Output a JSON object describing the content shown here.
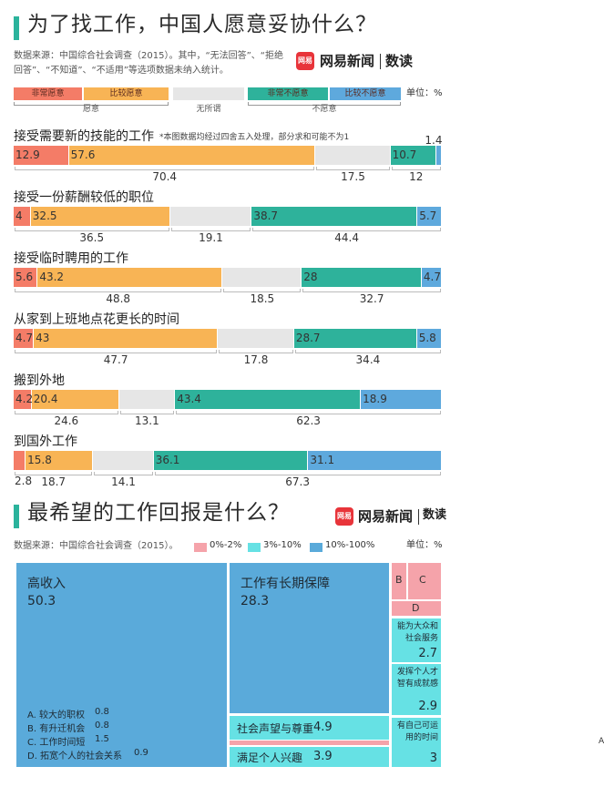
{
  "branding": {
    "icon": "网易",
    "name": "网易新闻",
    "column": "数读"
  },
  "chart_data": [
    {
      "type": "stacked-bar",
      "title": "为了找工作，中国人愿意妥协什么？",
      "source": "数据来源：中国综合社会调查（2015）。其中，“无法回答”、“拒绝回答”、“不知道”、“不适用”等选项数据未纳入统计。",
      "unit": "单位：%",
      "note": "*本图数据均经过四舍五入处理，部分求和可能不为1",
      "xlim": [
        0,
        100
      ],
      "legend": [
        "非常愿意",
        "比较愿意",
        null,
        "非常不愿意",
        "比较不愿意"
      ],
      "colors": [
        "#f47c67",
        "#f8b455",
        "#e6e6e6",
        "#2eb29b",
        "#5ea9dd"
      ],
      "groups": [
        "愿意",
        "无所谓",
        "不愿意"
      ],
      "items": [
        {
          "label": "接受需要新的技能的工作",
          "values": [
            12.9,
            57.6,
            17.5,
            10.7,
            1.4
          ],
          "totals": [
            70.4,
            17.5,
            12
          ]
        },
        {
          "label": "接受一份薪酬较低的职位",
          "values": [
            4,
            32.5,
            19.1,
            38.7,
            5.7
          ],
          "totals": [
            36.5,
            19.1,
            44.4
          ]
        },
        {
          "label": "接受临时聘用的工作",
          "values": [
            5.6,
            43.2,
            18.5,
            28,
            4.7
          ],
          "totals": [
            48.8,
            18.5,
            32.7
          ]
        },
        {
          "label": "从家到上班地点花更长的时间",
          "values": [
            4.7,
            43,
            17.8,
            28.7,
            5.8
          ],
          "totals": [
            47.7,
            17.8,
            34.4
          ]
        },
        {
          "label": "搬到外地",
          "values": [
            4.2,
            20.4,
            13.1,
            43.4,
            18.9
          ],
          "totals": [
            24.6,
            13.1,
            62.3
          ]
        },
        {
          "label": "到国外工作",
          "values": [
            2.8,
            15.8,
            14.1,
            36.1,
            31.1
          ],
          "totals": [
            18.7,
            14.1,
            67.3
          ]
        }
      ]
    },
    {
      "type": "treemap",
      "title": "最希望的工作回报是什么？",
      "source": "数据来源：中国综合社会调查（2015）。",
      "unit": "单位：%",
      "legend": [
        {
          "name": "0%-2%",
          "color": "#f5a3aa"
        },
        {
          "name": "3%-10%",
          "color": "#66e1e4"
        },
        {
          "name": "10%-100%",
          "color": "#5aaada"
        }
      ],
      "tiles": [
        {
          "label": "高收入",
          "value": 50.3,
          "color": "#5aaada"
        },
        {
          "label": "工作有长期保障",
          "value": 28.3,
          "color": "#5aaada"
        },
        {
          "label": "社会声望与尊重",
          "value": 4.9,
          "color": "#66e1e4"
        },
        {
          "label": "满足个人兴趣",
          "value": 3.9,
          "color": "#66e1e4"
        },
        {
          "label": "能为大众和社会服务",
          "value": 2.7,
          "color": "#66e1e4"
        },
        {
          "label": "发挥个人才智有成就感",
          "value": 2.9,
          "color": "#66e1e4"
        },
        {
          "label": "有自己可运用的时间",
          "value": 3,
          "color": "#66e1e4"
        }
      ],
      "small": [
        {
          "key": "A",
          "label": "A. 较大的职权",
          "value": 0.8,
          "color": "#f5a3aa"
        },
        {
          "key": "B",
          "label": "B. 有升迁机会",
          "value": 0.8,
          "color": "#f5a3aa"
        },
        {
          "key": "C",
          "label": "C. 工作时间短",
          "value": 1.5,
          "color": "#f5a3aa"
        },
        {
          "key": "D",
          "label": "D. 拓宽个人的社会关系",
          "value": 0.9,
          "color": "#f5a3aa"
        }
      ]
    }
  ]
}
